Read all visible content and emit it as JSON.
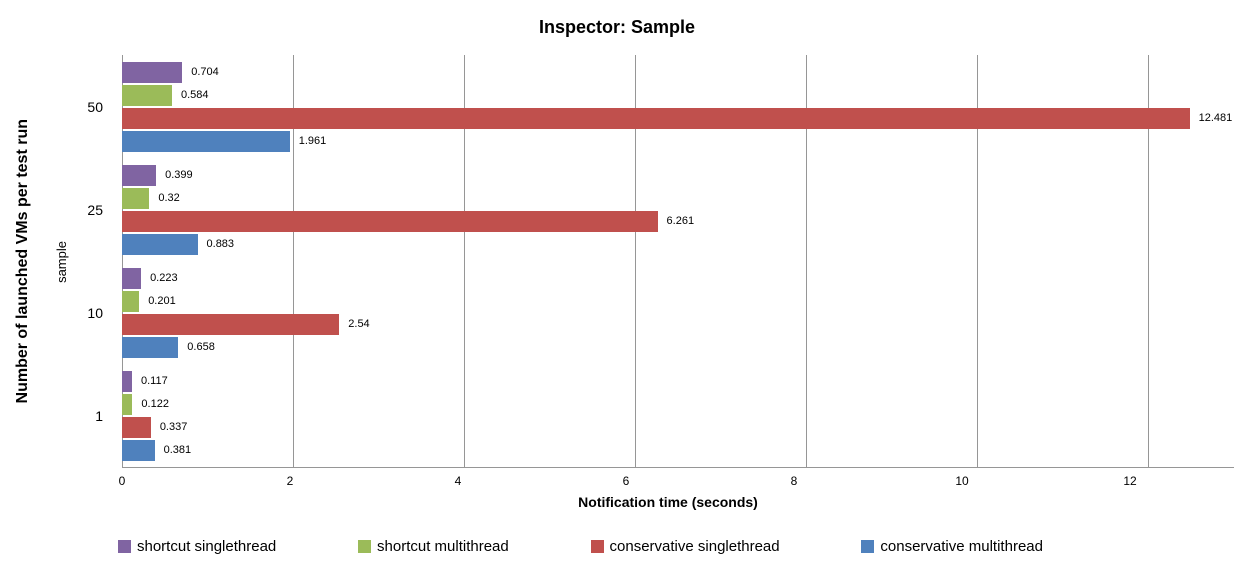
{
  "title": "Inspector: Sample",
  "axes": {
    "x_title": "Notification time (seconds)",
    "y_outer_title": "Number of launched VMs per test run",
    "y_inner_title": "sample",
    "x_ticks": [
      0,
      2,
      4,
      6,
      8,
      10,
      12
    ],
    "x_max": 13
  },
  "colors": {
    "shortcut_singlethread": "#8064A2",
    "shortcut_multithread": "#9BBB59",
    "conservative_singlethread": "#C0504D",
    "conservative_multithread": "#4F81BD",
    "gridline": "#969696",
    "background": "#FFFFFF",
    "text": "#000000"
  },
  "chart_data": {
    "type": "bar",
    "orientation": "horizontal",
    "title": "Inspector: Sample",
    "xlabel": "Notification time (seconds)",
    "ylabel": "Number of launched VMs per test run",
    "ylabel_inner": "sample",
    "categories": [
      "50",
      "25",
      "10",
      "1"
    ],
    "series": [
      {
        "name": "shortcut singlethread",
        "color": "#8064A2",
        "values": [
          0.704,
          0.399,
          0.223,
          0.117
        ],
        "labels": [
          "0.704",
          "0.399",
          "0.223",
          "0.117"
        ]
      },
      {
        "name": "shortcut multithread",
        "color": "#9BBB59",
        "values": [
          0.584,
          0.32,
          0.201,
          0.122
        ],
        "labels": [
          "0.584",
          "0.32",
          "0.201",
          "0.122"
        ]
      },
      {
        "name": "conservative singlethread",
        "color": "#C0504D",
        "values": [
          12.481,
          6.261,
          2.54,
          0.337
        ],
        "labels": [
          "12.481",
          "6.261",
          "2.54",
          "0.337"
        ]
      },
      {
        "name": "conservative multithread",
        "color": "#4F81BD",
        "values": [
          1.961,
          0.883,
          0.658,
          0.381
        ],
        "labels": [
          "1.961",
          "0.883",
          "0.658",
          "0.381"
        ]
      }
    ],
    "xlim": [
      0,
      13
    ],
    "grid": "vertical-only",
    "data_labels": true,
    "legend_position": "bottom"
  },
  "legend": {
    "items": [
      {
        "label": "shortcut singlethread",
        "color": "#8064A2"
      },
      {
        "label": "shortcut multithread",
        "color": "#9BBB59"
      },
      {
        "label": "conservative singlethread",
        "color": "#C0504D"
      },
      {
        "label": "conservative multithread",
        "color": "#4F81BD"
      }
    ]
  }
}
